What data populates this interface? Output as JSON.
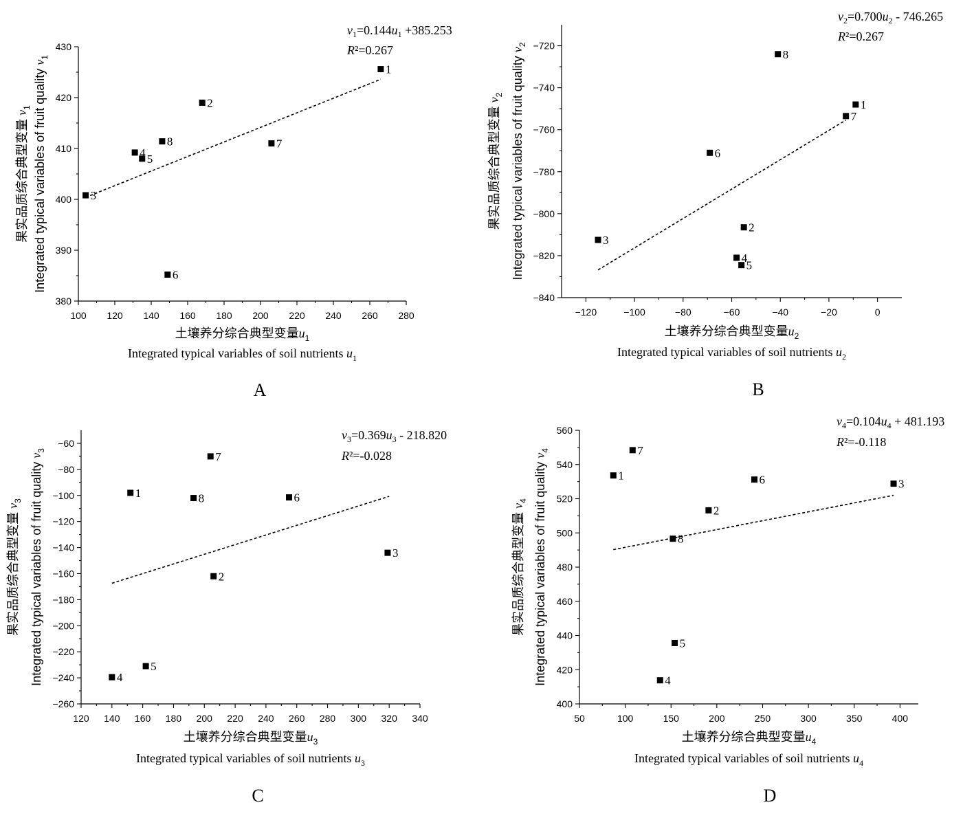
{
  "chart_data": [
    {
      "panel": "A",
      "type": "scatter",
      "xlabel_cn": "土壤养分综合典型变量u",
      "xlabel_sub": "1",
      "xlabel_en": "Integrated typical variables of soil nutrients u",
      "ylabel": "果实品质综合典型变量 / Integrated typical variables of fruit quality v",
      "ylabel_cn": "果实品质综合典型变量",
      "ylabel_en": "Integrated typical variables of fruit quality",
      "ylabel_var": "v",
      "ylabel_sub": "1",
      "xlim": [
        100,
        280
      ],
      "ylim": [
        380,
        430
      ],
      "xticks": [
        100,
        120,
        140,
        160,
        180,
        200,
        220,
        240,
        260,
        280
      ],
      "yticks": [
        380,
        390,
        400,
        410,
        420,
        430
      ],
      "points": [
        {
          "label": "1",
          "x": 266,
          "y": 425.6
        },
        {
          "label": "2",
          "x": 168,
          "y": 419.0
        },
        {
          "label": "3",
          "x": 104,
          "y": 400.8
        },
        {
          "label": "4",
          "x": 131,
          "y": 409.2
        },
        {
          "label": "5",
          "x": 135,
          "y": 408.0
        },
        {
          "label": "6",
          "x": 149,
          "y": 385.2
        },
        {
          "label": "7",
          "x": 206,
          "y": 411.0
        },
        {
          "label": "8",
          "x": 146,
          "y": 411.4
        }
      ],
      "fit": {
        "x": [
          104,
          266
        ],
        "y": [
          400.4,
          423.6
        ]
      },
      "equation": {
        "lhs": "v",
        "lhs_sub": "1",
        "mid": "=0.144",
        "var": "u",
        "var_sub": "1",
        "rhs": " +385.253"
      },
      "r2": {
        "label": "R",
        "text": "²=0.267"
      },
      "panel_letter": "A"
    },
    {
      "panel": "B",
      "type": "scatter",
      "xlabel_cn": "土壤养分综合典型变量u",
      "xlabel_sub": "2",
      "xlabel_en": "Integrated typical variables of soil nutrients u",
      "ylabel_cn": "果实品质综合典型变量",
      "ylabel_en": "Integrated typical variables of fruit quality",
      "ylabel_var": "v",
      "ylabel_sub": "2",
      "xlim": [
        -130,
        10
      ],
      "ylim": [
        -840,
        -710
      ],
      "xticks": [
        -120,
        -100,
        -80,
        -60,
        -40,
        -20,
        0
      ],
      "yticks": [
        -840,
        -820,
        -800,
        -780,
        -760,
        -740,
        -720
      ],
      "points": [
        {
          "label": "1",
          "x": -9,
          "y": -748
        },
        {
          "label": "2",
          "x": -55,
          "y": -806.5
        },
        {
          "label": "3",
          "x": -115,
          "y": -812.5
        },
        {
          "label": "4",
          "x": -58,
          "y": -821
        },
        {
          "label": "5",
          "x": -56,
          "y": -824.5
        },
        {
          "label": "6",
          "x": -69,
          "y": -771
        },
        {
          "label": "7",
          "x": -13,
          "y": -753.5
        },
        {
          "label": "8",
          "x": -41,
          "y": -724
        }
      ],
      "fit": {
        "x": [
          -115,
          -13
        ],
        "y": [
          -826.8,
          -755.4
        ]
      },
      "equation": {
        "lhs": "v",
        "lhs_sub": "2",
        "mid": "=0.700",
        "var": "u",
        "var_sub": "2",
        "rhs": " - 746.265"
      },
      "r2": {
        "label": "R",
        "text": "²=0.267"
      },
      "panel_letter": "B"
    },
    {
      "panel": "C",
      "type": "scatter",
      "xlabel_cn": "土壤养分综合典型变量u",
      "xlabel_sub": "3",
      "xlabel_en": "Integrated typical variables of soil nutrients u",
      "ylabel_cn": "果实品质综合典型变量",
      "ylabel_en": "Integrated typical variables of fruit quality",
      "ylabel_var": "v",
      "ylabel_sub": "3",
      "xlim": [
        120,
        340
      ],
      "ylim": [
        -260,
        -50
      ],
      "xticks": [
        120,
        140,
        160,
        180,
        200,
        220,
        240,
        260,
        280,
        300,
        320,
        340
      ],
      "yticks": [
        -260,
        -240,
        -220,
        -200,
        -180,
        -160,
        -140,
        -120,
        -100,
        -80,
        -60
      ],
      "points": [
        {
          "label": "1",
          "x": 152,
          "y": -98
        },
        {
          "label": "2",
          "x": 206,
          "y": -162
        },
        {
          "label": "3",
          "x": 319,
          "y": -144
        },
        {
          "label": "4",
          "x": 140,
          "y": -239.5
        },
        {
          "label": "5",
          "x": 162,
          "y": -231
        },
        {
          "label": "6",
          "x": 255,
          "y": -101.5
        },
        {
          "label": "7",
          "x": 204,
          "y": -70
        },
        {
          "label": "8",
          "x": 193,
          "y": -102
        }
      ],
      "fit": {
        "x": [
          140,
          320
        ],
        "y": [
          -167.4,
          -100.7
        ]
      },
      "equation": {
        "lhs": "v",
        "lhs_sub": "3",
        "mid": "=0.369",
        "var": "u",
        "var_sub": "3",
        "rhs": " - 218.820"
      },
      "r2": {
        "label": "R",
        "text": "²=-0.028"
      },
      "panel_letter": "C"
    },
    {
      "panel": "D",
      "type": "scatter",
      "xlabel_cn": "土壤养分综合典型变量u",
      "xlabel_sub": "4",
      "xlabel_en": "Integrated typical variables of soil nutrients u",
      "ylabel_cn": "果实品质综合典型变量",
      "ylabel_en": "Integrated typical variables of fruit quality",
      "ylabel_var": "v",
      "ylabel_sub": "4",
      "xlim": [
        50,
        420
      ],
      "ylim": [
        400,
        560
      ],
      "xticks": [
        50,
        100,
        150,
        200,
        250,
        300,
        350,
        400
      ],
      "yticks": [
        400,
        420,
        440,
        460,
        480,
        500,
        520,
        540,
        560
      ],
      "points": [
        {
          "label": "1",
          "x": 87,
          "y": 533.6
        },
        {
          "label": "2",
          "x": 191,
          "y": 513.2
        },
        {
          "label": "3",
          "x": 393,
          "y": 528.8
        },
        {
          "label": "4",
          "x": 138,
          "y": 413.8
        },
        {
          "label": "5",
          "x": 154,
          "y": 435.6
        },
        {
          "label": "6",
          "x": 241,
          "y": 531.2
        },
        {
          "label": "7",
          "x": 108,
          "y": 548.4
        },
        {
          "label": "8",
          "x": 152,
          "y": 496.6
        }
      ],
      "fit": {
        "x": [
          87,
          393
        ],
        "y": [
          490.2,
          522.0
        ]
      },
      "equation": {
        "lhs": "v",
        "lhs_sub": "4",
        "mid": "=0.104",
        "var": "u",
        "var_sub": "4",
        "rhs": " + 481.193"
      },
      "r2": {
        "label": "R",
        "text": "²=-0.118"
      },
      "panel_letter": "D"
    }
  ]
}
